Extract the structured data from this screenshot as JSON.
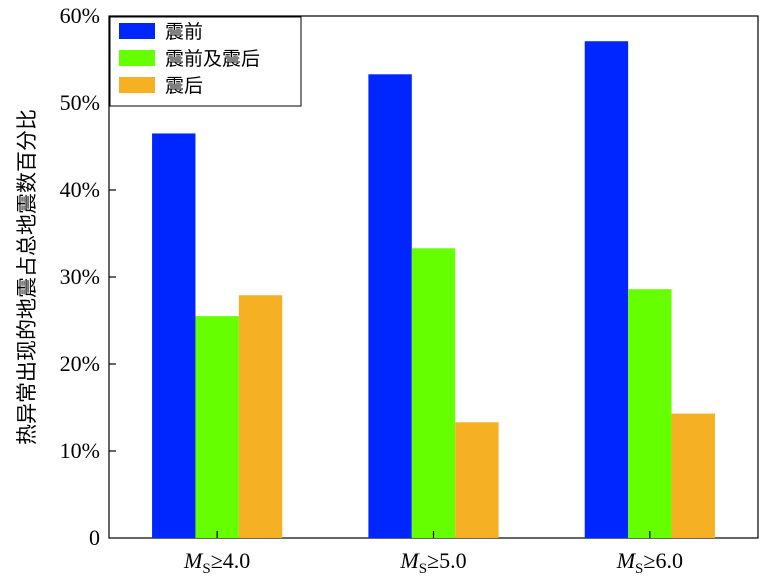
{
  "chart_data": {
    "type": "bar",
    "ylabel": "热异常出现的地震占总地震数百分比",
    "xlabel": "",
    "ylim": [
      0,
      60
    ],
    "y_ticks": [
      0,
      10,
      20,
      30,
      40,
      50,
      60
    ],
    "y_tick_labels": [
      "0",
      "10%",
      "20%",
      "30%",
      "40%",
      "50%",
      "60%"
    ],
    "categories": [
      {
        "var": "M",
        "sub": "S",
        "rest": "≥4.0"
      },
      {
        "var": "M",
        "sub": "S",
        "rest": "≥5.0"
      },
      {
        "var": "M",
        "sub": "S",
        "rest": "≥6.0"
      }
    ],
    "series": [
      {
        "name": "震前",
        "color": "#0026ff",
        "values": [
          46.5,
          53.3,
          57.1
        ]
      },
      {
        "name": "震前及震后",
        "color": "#66ff00",
        "values": [
          25.5,
          33.3,
          28.6
        ]
      },
      {
        "name": "震后",
        "color": "#f5b023",
        "values": [
          27.9,
          13.3,
          14.3
        ]
      }
    ],
    "legend_position": "top-left",
    "grid": false
  }
}
